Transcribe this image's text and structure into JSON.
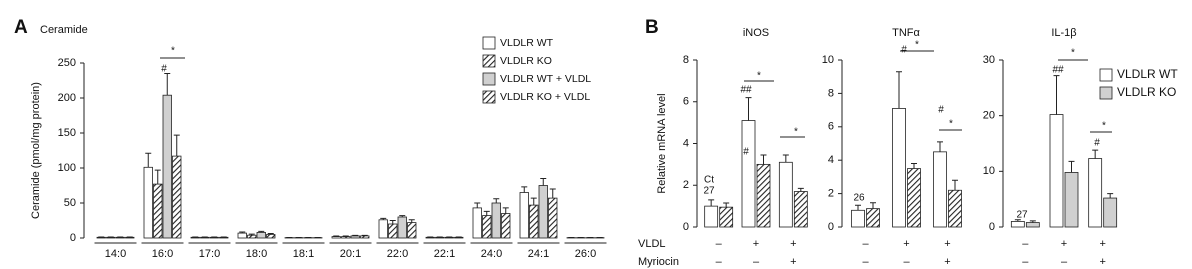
{
  "panels": [
    "A",
    "B"
  ],
  "row_labels": [
    "VLDL",
    "Myriocin"
  ],
  "chart_data": [
    {
      "type": "bar",
      "title": "Ceramide",
      "y_label": "Ceramide (pmol/mg protein)",
      "categories": [
        "14:0",
        "16:0",
        "17:0",
        "18:0",
        "18:1",
        "20:1",
        "22:0",
        "22:1",
        "24:0",
        "24:1",
        "26:0"
      ],
      "ylim": [
        0,
        250
      ],
      "yticks": [
        0,
        50,
        100,
        150,
        200,
        250
      ],
      "legend": "top-right",
      "series": [
        {
          "name": "VLDLR WT",
          "color": "#ffffff",
          "hatch": false,
          "values": [
            1,
            101,
            1,
            7,
            0.5,
            2,
            26,
            1,
            43,
            65,
            0.5
          ],
          "errors": [
            0.5,
            20,
            0.5,
            1.5,
            0.3,
            0.8,
            2,
            0.5,
            7,
            8,
            0.3
          ]
        },
        {
          "name": "VLDLR KO",
          "color": "#ffffff",
          "hatch": true,
          "values": [
            1,
            77,
            1,
            4,
            0.5,
            2,
            20,
            1,
            32,
            47,
            0.5
          ],
          "errors": [
            0.5,
            20,
            0.5,
            1.5,
            0.3,
            0.8,
            5,
            0.5,
            6,
            10,
            0.3
          ]
        },
        {
          "name": "VLDLR WT + VLDL",
          "color": "#d0d0d0",
          "hatch": false,
          "values": [
            1,
            204,
            1,
            8,
            0.5,
            3,
            30,
            1,
            50,
            75,
            0.5
          ],
          "errors": [
            0.5,
            31,
            0.5,
            1.5,
            0.3,
            0.8,
            2,
            0.5,
            6,
            10,
            0.3
          ]
        },
        {
          "name": "VLDLR KO + VLDL",
          "color": "#d0d0d0",
          "hatch": true,
          "values": [
            1,
            117,
            1,
            5,
            0.5,
            3,
            22,
            1,
            35,
            57,
            0.5
          ],
          "errors": [
            0.5,
            30,
            0.5,
            1.5,
            0.3,
            0.8,
            4,
            0.5,
            8,
            13,
            0.3
          ]
        }
      ],
      "annotations": [
        "*",
        "#"
      ]
    },
    {
      "type": "bar",
      "title": "iNOS",
      "y_label": "Relative mRNA level",
      "categories": [
        null,
        null,
        null
      ],
      "rows": [
        [
          "–",
          "+",
          "+"
        ],
        [
          "–",
          "–",
          "+"
        ]
      ],
      "ylim": [
        0,
        8
      ],
      "yticks": [
        0,
        2,
        4,
        6,
        8
      ],
      "series": [
        {
          "color": "#ffffff",
          "hatch": false,
          "values": [
            1.0,
            5.1,
            3.1
          ],
          "errors": [
            0.3,
            1.1,
            0.35
          ]
        },
        {
          "color": "#ffffff",
          "hatch": true,
          "values": [
            0.95,
            3.0,
            1.7
          ],
          "errors": [
            0.2,
            0.45,
            0.15
          ]
        }
      ],
      "annotations": [
        "Ct",
        "27",
        "##",
        "*",
        "#",
        "*"
      ]
    },
    {
      "type": "bar",
      "title": "TNFα",
      "categories": [
        null,
        null,
        null
      ],
      "rows": [
        [
          "–",
          "+",
          "+"
        ],
        [
          "–",
          "–",
          "+"
        ]
      ],
      "ylim": [
        0,
        10
      ],
      "yticks": [
        0,
        2,
        4,
        6,
        8,
        10
      ],
      "series": [
        {
          "color": "#ffffff",
          "hatch": false,
          "values": [
            1.0,
            7.1,
            4.5
          ],
          "errors": [
            0.3,
            2.2,
            0.6
          ]
        },
        {
          "color": "#ffffff",
          "hatch": true,
          "values": [
            1.1,
            3.5,
            2.2
          ],
          "errors": [
            0.35,
            0.3,
            0.6
          ]
        }
      ],
      "annotations": [
        "26",
        "#",
        "*",
        "#",
        "*"
      ]
    },
    {
      "type": "bar",
      "title": "IL-1β",
      "categories": [
        null,
        null,
        null
      ],
      "rows": [
        [
          "–",
          "+",
          "+"
        ],
        [
          "–",
          "–",
          "+"
        ]
      ],
      "ylim": [
        0,
        30
      ],
      "yticks": [
        0,
        10,
        20,
        30
      ],
      "legend": "top-right",
      "series": [
        {
          "name": "VLDLR WT",
          "color": "#ffffff",
          "hatch": false,
          "values": [
            1,
            20.2,
            12.3
          ],
          "errors": [
            0.3,
            7,
            1.5
          ]
        },
        {
          "name": "VLDLR KO",
          "color": "#d0d0d0",
          "hatch": false,
          "values": [
            0.8,
            9.8,
            5.2
          ],
          "errors": [
            0.3,
            2,
            0.8
          ]
        }
      ],
      "annotations": [
        "27",
        "##",
        "*",
        "#",
        "*"
      ]
    }
  ]
}
